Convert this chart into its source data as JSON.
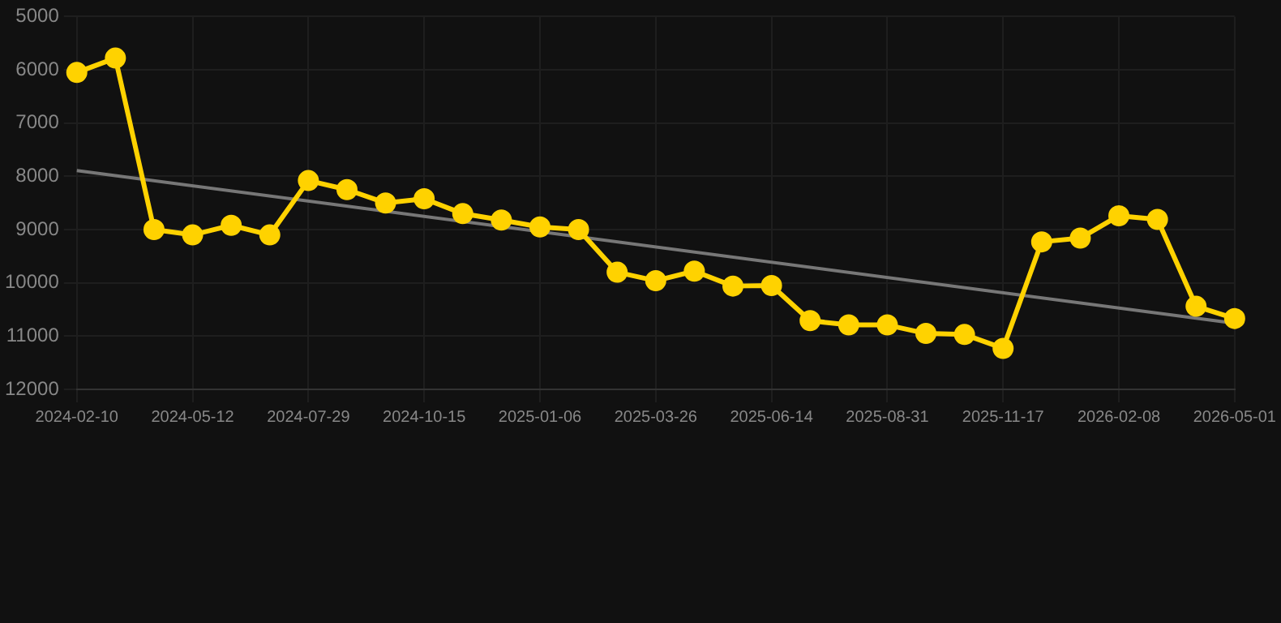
{
  "chart_data": {
    "type": "line",
    "categories": [
      "2024-02-10",
      null,
      null,
      "2024-05-12",
      null,
      null,
      "2024-07-29",
      null,
      null,
      "2024-10-15",
      null,
      null,
      "2025-01-06",
      null,
      null,
      "2025-03-26",
      null,
      null,
      "2025-06-14",
      null,
      null,
      "2025-08-31",
      null,
      null,
      "2025-11-17",
      null,
      null,
      "2026-02-08",
      null,
      null,
      "2026-05-01"
    ],
    "series": [
      {
        "color": "#ffd200",
        "marker": "circle",
        "values": [
          6050,
          5780,
          9000,
          9100,
          8920,
          9100,
          8080,
          8250,
          8500,
          8420,
          8700,
          8820,
          8950,
          9000,
          9800,
          9960,
          9780,
          10060,
          10050,
          10710,
          10790,
          10790,
          10950,
          10970,
          11230,
          9230,
          9160,
          8740,
          8810,
          10440,
          10670
        ]
      },
      {
        "type": "line",
        "color": "#777777",
        "marker": "none",
        "values": [
          7890,
          null,
          null,
          null,
          null,
          null,
          null,
          null,
          null,
          null,
          null,
          null,
          null,
          null,
          null,
          null,
          null,
          null,
          null,
          null,
          null,
          null,
          null,
          null,
          null,
          null,
          null,
          null,
          null,
          null,
          10760
        ]
      }
    ],
    "ylim": [
      12000,
      5000
    ],
    "yticks": [
      5000,
      6000,
      7000,
      8000,
      9000,
      10000,
      11000,
      12000
    ],
    "grid": true,
    "legend": false
  }
}
